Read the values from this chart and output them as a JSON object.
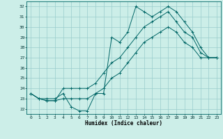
{
  "xlabel": "Humidex (Indice chaleur)",
  "ylabel": "",
  "background_color": "#cceee8",
  "grid_color": "#99cccc",
  "line_color": "#006666",
  "xlim": [
    -0.5,
    23.5
  ],
  "ylim": [
    21.5,
    32.5
  ],
  "yticks": [
    22,
    23,
    24,
    25,
    26,
    27,
    28,
    29,
    30,
    31,
    32
  ],
  "xticks": [
    0,
    1,
    2,
    3,
    4,
    5,
    6,
    7,
    8,
    9,
    10,
    11,
    12,
    13,
    14,
    15,
    16,
    17,
    18,
    19,
    20,
    21,
    22,
    23
  ],
  "series": [
    [
      23.5,
      23.0,
      23.0,
      23.0,
      23.5,
      22.2,
      21.8,
      21.8,
      23.5,
      23.5,
      29.0,
      28.5,
      29.5,
      32.0,
      31.5,
      31.0,
      31.5,
      32.0,
      31.5,
      30.5,
      29.5,
      28.0,
      27.0,
      27.0
    ],
    [
      23.5,
      23.0,
      22.8,
      22.8,
      24.0,
      24.0,
      24.0,
      24.0,
      24.5,
      25.5,
      26.5,
      27.0,
      28.0,
      29.0,
      30.0,
      30.5,
      31.0,
      31.5,
      30.5,
      29.5,
      29.0,
      27.5,
      27.0,
      27.0
    ],
    [
      23.5,
      23.0,
      22.8,
      22.8,
      23.0,
      23.0,
      23.0,
      23.0,
      23.5,
      24.0,
      25.0,
      25.5,
      26.5,
      27.5,
      28.5,
      29.0,
      29.5,
      30.0,
      29.5,
      28.5,
      28.0,
      27.0,
      27.0,
      27.0
    ]
  ]
}
